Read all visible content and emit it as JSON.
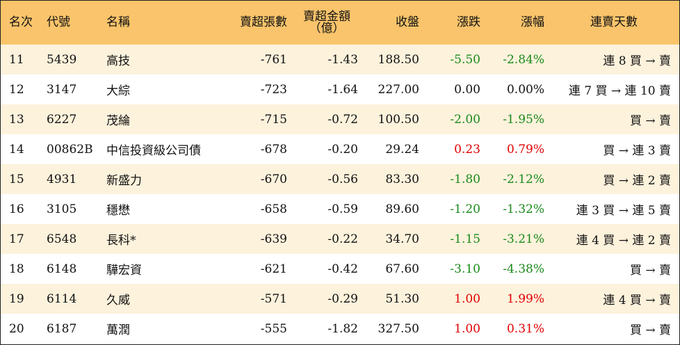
{
  "headers": {
    "rank": "名次",
    "code": "代號",
    "name": "名稱",
    "net_sell_shares": "賣超張數",
    "net_sell_amount_line1": "賣超金額",
    "net_sell_amount_line2": "（億）",
    "close": "收盤",
    "change": "漲跌",
    "change_pct": "漲幅",
    "streak": "連賣天數"
  },
  "colors": {
    "header_bg": "#f9c46b",
    "stripe_bg": "#fdf2dc",
    "up": "#e00000",
    "down": "#1a8a1a"
  },
  "rows": [
    {
      "rank": "11",
      "code": "5439",
      "name": "高技",
      "shares": "-761",
      "amount": "-1.43",
      "close": "188.50",
      "change": "-5.50",
      "pct": "-2.84%",
      "trend": "down",
      "streak": "連 8 買 → 賣"
    },
    {
      "rank": "12",
      "code": "3147",
      "name": "大綜",
      "shares": "-723",
      "amount": "-1.64",
      "close": "227.00",
      "change": "0.00",
      "pct": "0.00%",
      "trend": "flat",
      "streak": "連 7 買 → 連 10 賣"
    },
    {
      "rank": "13",
      "code": "6227",
      "name": "茂綸",
      "shares": "-715",
      "amount": "-0.72",
      "close": "100.50",
      "change": "-2.00",
      "pct": "-1.95%",
      "trend": "down",
      "streak": "買 → 賣"
    },
    {
      "rank": "14",
      "code": "00862B",
      "name": "中信投資級公司債",
      "shares": "-678",
      "amount": "-0.20",
      "close": "29.24",
      "change": "0.23",
      "pct": "0.79%",
      "trend": "up",
      "streak": "買 → 連 3 賣"
    },
    {
      "rank": "15",
      "code": "4931",
      "name": "新盛力",
      "shares": "-670",
      "amount": "-0.56",
      "close": "83.30",
      "change": "-1.80",
      "pct": "-2.12%",
      "trend": "down",
      "streak": "買 → 連 2 賣"
    },
    {
      "rank": "16",
      "code": "3105",
      "name": "穩懋",
      "shares": "-658",
      "amount": "-0.59",
      "close": "89.60",
      "change": "-1.20",
      "pct": "-1.32%",
      "trend": "down",
      "streak": "連 3 買 → 連 5 賣"
    },
    {
      "rank": "17",
      "code": "6548",
      "name": "長科*",
      "shares": "-639",
      "amount": "-0.22",
      "close": "34.70",
      "change": "-1.15",
      "pct": "-3.21%",
      "trend": "down",
      "streak": "連 4 買 → 連 2 賣"
    },
    {
      "rank": "18",
      "code": "6148",
      "name": "驊宏資",
      "shares": "-621",
      "amount": "-0.42",
      "close": "67.60",
      "change": "-3.10",
      "pct": "-4.38%",
      "trend": "down",
      "streak": "買 → 賣"
    },
    {
      "rank": "19",
      "code": "6114",
      "name": "久威",
      "shares": "-571",
      "amount": "-0.29",
      "close": "51.30",
      "change": "1.00",
      "pct": "1.99%",
      "trend": "up",
      "streak": "連 4 買 → 賣"
    },
    {
      "rank": "20",
      "code": "6187",
      "name": "萬潤",
      "shares": "-555",
      "amount": "-1.82",
      "close": "327.50",
      "change": "1.00",
      "pct": "0.31%",
      "trend": "up",
      "streak": "買 → 賣"
    }
  ]
}
